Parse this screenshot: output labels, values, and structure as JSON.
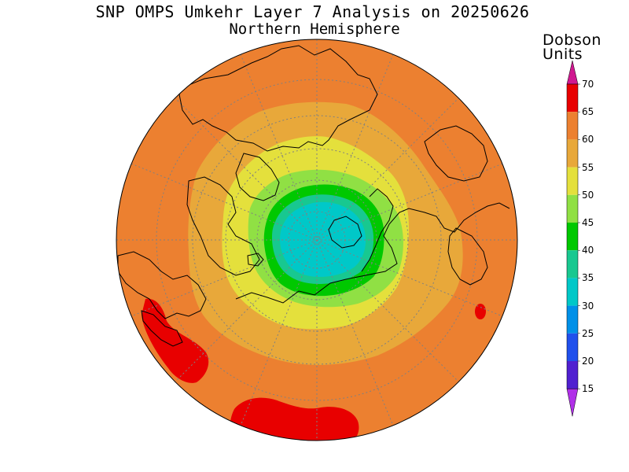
{
  "title": "SNP OMPS Umkehr Layer 7 Analysis on 20250626",
  "subtitle": "Northern Hemisphere",
  "colorbar": {
    "units_line1": "Dobson",
    "units_line2": "Units",
    "ticks": [
      "70",
      "65",
      "60",
      "55",
      "50",
      "45",
      "40",
      "35",
      "30",
      "25",
      "20",
      "15"
    ],
    "bands": [
      {
        "range": "65-70",
        "color": "#e80000"
      },
      {
        "range": "60-65",
        "color": "#ec8030"
      },
      {
        "range": "55-60",
        "color": "#e8a83a"
      },
      {
        "range": "50-55",
        "color": "#e4e03c"
      },
      {
        "range": "45-50",
        "color": "#90e044"
      },
      {
        "range": "40-45",
        "color": "#00c800"
      },
      {
        "range": "35-40",
        "color": "#18c890"
      },
      {
        "range": "30-35",
        "color": "#00c8c8"
      },
      {
        "range": "25-30",
        "color": "#0090e8"
      },
      {
        "range": "20-25",
        "color": "#2050ec"
      },
      {
        "range": "15-20",
        "color": "#5020d0"
      },
      {
        "range": "<15",
        "color": "#9000e0"
      }
    ],
    "top_arrow_color": "#d01890",
    "bottom_arrow_color": "#b030e8"
  },
  "map": {
    "projection": "north polar stereographic",
    "hemisphere": "Northern",
    "background_field": "ozone column, layer 7",
    "colors": {
      "outer": "#ec8030",
      "ring55": "#e8a83a",
      "ring50": "#e4e03c",
      "ring45": "#90e044",
      "ring40": "#00c800",
      "ring35": "#18c890",
      "core30": "#00c8c8",
      "high65": "#e80000",
      "coast": "#000000",
      "grid": "#808080"
    }
  }
}
